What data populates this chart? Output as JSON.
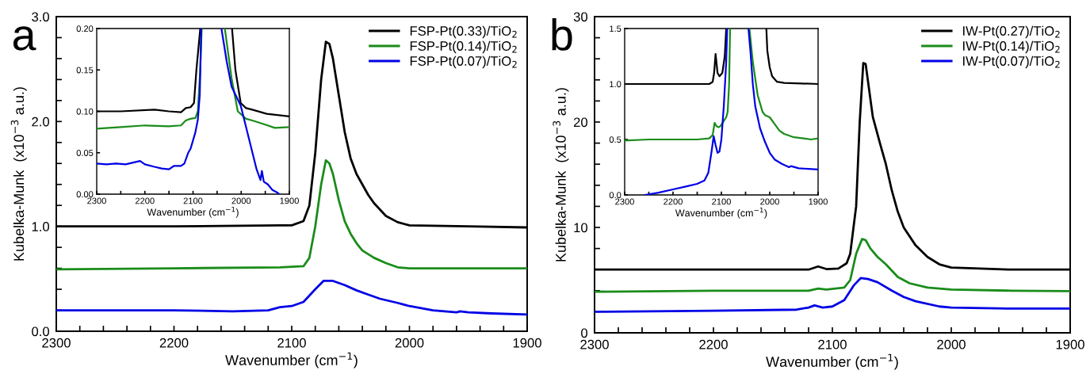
{
  "chart_data": [
    {
      "type": "line",
      "xlabel": "Wavenumber (cm$^{−1}$)",
      "ylabel": "Kubelka-Munk  (x10$^{−3}$ a.u.)",
      "annotations": [
        "a"
      ],
      "legend": "top right",
      "grid": false,
      "xlim": [
        2300,
        1900
      ],
      "ylim": [
        0,
        3.0
      ],
      "xticks": [
        2300,
        {
          "value": 2280,
          "label": null
        },
        {
          "value": 2260,
          "label": null
        },
        {
          "value": 2240,
          "label": null
        },
        {
          "value": 2220,
          "label": null
        },
        2200,
        {
          "value": 2180,
          "label": null
        },
        {
          "value": 2160,
          "label": null
        },
        {
          "value": 2140,
          "label": null
        },
        {
          "value": 2120,
          "label": null
        },
        2100,
        {
          "value": 2080,
          "label": null
        },
        {
          "value": 2060,
          "label": null
        },
        {
          "value": 2040,
          "label": null
        },
        {
          "value": 2020,
          "label": null
        },
        2000,
        {
          "value": 1980,
          "label": null
        },
        {
          "value": 1960,
          "label": null
        },
        {
          "value": 1940,
          "label": null
        },
        {
          "value": 1920,
          "label": null
        },
        1900
      ],
      "yticks": [
        {
          "value": 0,
          "label": "0.0"
        },
        {
          "value": 0.2,
          "label": null
        },
        {
          "value": 0.4,
          "label": null
        },
        {
          "value": 0.6,
          "label": null
        },
        {
          "value": 0.8,
          "label": null
        },
        {
          "value": 1,
          "label": "1.0"
        },
        {
          "value": 1.2,
          "label": null
        },
        {
          "value": 1.4,
          "label": null
        },
        {
          "value": 1.6,
          "label": null
        },
        {
          "value": 1.8,
          "label": null
        },
        {
          "value": 2,
          "label": "2.0"
        },
        {
          "value": 2.2,
          "label": null
        },
        {
          "value": 2.4,
          "label": null
        },
        {
          "value": 2.6,
          "label": null
        },
        {
          "value": 2.8,
          "label": null
        },
        {
          "value": 3,
          "label": "3.0"
        }
      ],
      "series": [
        {
          "name": "FSP-Pt(0.33)/TiO$_{2}$",
          "color": "#000000",
          "x": [
            2300,
            2200,
            2110,
            2100,
            2090,
            2085,
            2080,
            2075,
            2071,
            2068,
            2065,
            2060,
            2055,
            2050,
            2045,
            2040,
            2035,
            2030,
            2020,
            2010,
            2000,
            1950,
            1900
          ],
          "values": [
            1.0,
            1.0,
            1.01,
            1.01,
            1.05,
            1.2,
            1.7,
            2.4,
            2.76,
            2.74,
            2.6,
            2.25,
            1.9,
            1.65,
            1.5,
            1.4,
            1.3,
            1.22,
            1.1,
            1.04,
            1.01,
            1.0,
            0.99
          ]
        },
        {
          "name": "FSP-Pt(0.14)/TiO$_{2}$",
          "color": "#1a8c1a",
          "x": [
            2300,
            2200,
            2110,
            2090,
            2085,
            2080,
            2075,
            2071,
            2068,
            2065,
            2060,
            2055,
            2050,
            2045,
            2040,
            2030,
            2020,
            2010,
            2000,
            1900
          ],
          "values": [
            0.59,
            0.6,
            0.61,
            0.62,
            0.7,
            1.0,
            1.4,
            1.63,
            1.6,
            1.5,
            1.25,
            1.05,
            0.93,
            0.84,
            0.77,
            0.7,
            0.65,
            0.61,
            0.6,
            0.6
          ]
        },
        {
          "name": "FSP-Pt(0.07)/TiO$_{2}$",
          "color": "#0000e6",
          "x": [
            2300,
            2250,
            2200,
            2150,
            2120,
            2110,
            2100,
            2090,
            2080,
            2073,
            2065,
            2055,
            2045,
            2035,
            2025,
            2010,
            2000,
            1980,
            1960,
            1957,
            1950,
            1930,
            1900
          ],
          "values": [
            0.2,
            0.2,
            0.2,
            0.19,
            0.2,
            0.23,
            0.24,
            0.28,
            0.4,
            0.48,
            0.48,
            0.44,
            0.39,
            0.35,
            0.31,
            0.27,
            0.24,
            0.2,
            0.18,
            0.19,
            0.18,
            0.17,
            0.16
          ]
        }
      ]
    },
    {
      "type": "line",
      "xlabel": "Wavenumber (cm$^{−1}$)",
      "grid": false,
      "xlim": [
        2300,
        1900
      ],
      "ylim": [
        0,
        0.2
      ],
      "xticks": [
        2300,
        {
          "value": 2250,
          "label": null
        },
        2200,
        {
          "value": 2150,
          "label": null
        },
        2100,
        {
          "value": 2050,
          "label": null
        },
        2000,
        {
          "value": 1950,
          "label": null
        },
        1900
      ],
      "yticks": [
        {
          "value": 0,
          "label": "0.00"
        },
        0.05,
        {
          "value": 0.1,
          "label": "0.10"
        },
        0.15,
        {
          "value": 0.2,
          "label": "0.20"
        }
      ],
      "series": [
        {
          "color": "#000000",
          "x": [
            2300,
            2250,
            2180,
            2150,
            2125,
            2115,
            2105,
            2098,
            2093,
            2085,
            2050,
            2019,
            2012,
            2001,
            1990,
            1977,
            1947,
            1900
          ],
          "values": [
            0.1,
            0.1,
            0.102,
            0.1,
            0.099,
            0.104,
            0.105,
            0.11,
            0.15,
            0.2,
            null,
            0.2,
            0.15,
            0.11,
            0.104,
            0.102,
            0.097,
            0.094
          ]
        },
        {
          "color": "#1a8c1a",
          "x": [
            2300,
            2250,
            2200,
            2150,
            2125,
            2115,
            2105,
            2095,
            2090,
            2085,
            2082,
            2060,
            2034,
            2020,
            2007,
            1990,
            1977,
            1950,
            1930,
            1900
          ],
          "values": [
            0.079,
            0.081,
            0.083,
            0.082,
            0.083,
            0.089,
            0.091,
            0.092,
            0.1,
            0.15,
            0.2,
            null,
            0.2,
            0.14,
            0.1,
            0.091,
            0.089,
            0.084,
            0.08,
            0.081
          ]
        },
        {
          "color": "#0000e6",
          "x": [
            2300,
            2280,
            2260,
            2240,
            2210,
            2200,
            2180,
            2165,
            2150,
            2140,
            2125,
            2118,
            2110,
            2105,
            2100,
            2095,
            2090,
            2086,
            2083,
            2060,
            2041,
            2030,
            2020,
            2001,
            1968,
            1960,
            1957,
            1953,
            1945,
            1935,
            1925,
            1921
          ],
          "values": [
            0.037,
            0.036,
            0.037,
            0.036,
            0.04,
            0.036,
            0.033,
            0.031,
            0.03,
            0.034,
            0.034,
            0.037,
            0.05,
            0.055,
            0.065,
            0.075,
            0.09,
            0.12,
            0.2,
            null,
            0.2,
            0.16,
            0.13,
            0.107,
            0.03,
            0.017,
            0.028,
            0.015,
            0.012,
            0.005,
            0.002,
            0.0
          ]
        }
      ]
    },
    {
      "type": "line",
      "xlabel": "Wavenumber (cm$^{−1}$)",
      "ylabel": "Kubelka-Munk  (x10$^{−3}$ a.u.)",
      "annotations": [
        "b"
      ],
      "legend": "top right",
      "grid": false,
      "xlim": [
        2300,
        1900
      ],
      "ylim": [
        0,
        30
      ],
      "xticks": [
        2300,
        {
          "value": 2280,
          "label": null
        },
        {
          "value": 2260,
          "label": null
        },
        {
          "value": 2240,
          "label": null
        },
        {
          "value": 2220,
          "label": null
        },
        2200,
        {
          "value": 2180,
          "label": null
        },
        {
          "value": 2160,
          "label": null
        },
        {
          "value": 2140,
          "label": null
        },
        {
          "value": 2120,
          "label": null
        },
        2100,
        {
          "value": 2080,
          "label": null
        },
        {
          "value": 2060,
          "label": null
        },
        {
          "value": 2040,
          "label": null
        },
        {
          "value": 2020,
          "label": null
        },
        2000,
        {
          "value": 1980,
          "label": null
        },
        {
          "value": 1960,
          "label": null
        },
        {
          "value": 1940,
          "label": null
        },
        {
          "value": 1920,
          "label": null
        },
        1900
      ],
      "yticks": [
        0,
        {
          "value": 2,
          "label": null
        },
        {
          "value": 4,
          "label": null
        },
        {
          "value": 6,
          "label": null
        },
        {
          "value": 8,
          "label": null
        },
        10,
        {
          "value": 12,
          "label": null
        },
        {
          "value": 14,
          "label": null
        },
        {
          "value": 16,
          "label": null
        },
        {
          "value": 18,
          "label": null
        },
        20,
        {
          "value": 22,
          "label": null
        },
        {
          "value": 24,
          "label": null
        },
        {
          "value": 26,
          "label": null
        },
        {
          "value": 28,
          "label": null
        },
        30
      ],
      "series": [
        {
          "name": "IW-Pt(0.27)/TiO$_{2}$",
          "color": "#000000",
          "x": [
            2300,
            2120,
            2112,
            2105,
            2095,
            2088,
            2085,
            2080,
            2077,
            2074,
            2072,
            2069,
            2066,
            2060,
            2055,
            2050,
            2045,
            2040,
            2030,
            2020,
            2010,
            2000,
            1950,
            1900
          ],
          "values": [
            6.0,
            6.0,
            6.3,
            6.05,
            6.1,
            6.6,
            7.5,
            12,
            20,
            25.6,
            25.5,
            23,
            20.5,
            18.0,
            16,
            13.5,
            11.5,
            10,
            8.3,
            7.2,
            6.5,
            6.2,
            6.0,
            6.0
          ]
        },
        {
          "name": "IW-Pt(0.14)/TiO$_{2}$",
          "color": "#1a8c1a",
          "x": [
            2300,
            2200,
            2120,
            2112,
            2105,
            2090,
            2085,
            2080,
            2075,
            2072,
            2068,
            2062,
            2055,
            2045,
            2035,
            2020,
            2000,
            1950,
            1900
          ],
          "values": [
            3.9,
            4.0,
            4.0,
            4.2,
            4.1,
            4.3,
            5,
            7.5,
            8.9,
            8.8,
            8,
            7.2,
            6.5,
            5.3,
            4.7,
            4.3,
            4.1,
            4.0,
            3.95
          ]
        },
        {
          "name": "IW-Pt(0.07)/TiO$_{2}$",
          "color": "#0000e6",
          "x": [
            2300,
            2200,
            2130,
            2120,
            2115,
            2108,
            2100,
            2090,
            2082,
            2076,
            2070,
            2062,
            2050,
            2040,
            2030,
            2010,
            2000,
            1950,
            1900
          ],
          "values": [
            2.0,
            2.1,
            2.2,
            2.4,
            2.6,
            2.4,
            2.5,
            3.1,
            4.5,
            5.2,
            5.1,
            4.8,
            4.0,
            3.4,
            3.0,
            2.5,
            2.4,
            2.3,
            2.3
          ]
        }
      ]
    },
    {
      "type": "line",
      "xlabel": "Wavenumber (cm$^{−1}$)",
      "grid": false,
      "xlim": [
        2300,
        1900
      ],
      "ylim": [
        0,
        1.5
      ],
      "xticks": [
        2300,
        {
          "value": 2250,
          "label": null
        },
        2200,
        {
          "value": 2150,
          "label": null
        },
        2100,
        {
          "value": 2050,
          "label": null
        },
        2000,
        {
          "value": 1950,
          "label": null
        },
        1900
      ],
      "yticks": [
        {
          "value": 0,
          "label": "0.0"
        },
        0.5,
        {
          "value": 1,
          "label": "1.0"
        },
        1.5
      ],
      "series": [
        {
          "color": "#000000",
          "x": [
            2300,
            2200,
            2125,
            2118,
            2115,
            2112,
            2108,
            2104,
            2098,
            2093,
            2090,
            2050,
            2007,
            2005,
            2000,
            1995,
            1985,
            1970,
            1900
          ],
          "values": [
            1.0,
            1.0,
            1.0,
            1.02,
            1.1,
            1.27,
            1.1,
            1.07,
            1.1,
            1.25,
            1.5,
            null,
            1.5,
            1.3,
            1.15,
            1.07,
            1.02,
            1.01,
            1.0
          ]
        },
        {
          "color": "#1a8c1a",
          "x": [
            2300,
            2250,
            2200,
            2150,
            2125,
            2118,
            2114,
            2110,
            2106,
            2102,
            2096,
            2090,
            2087,
            2084,
            2082,
            2060,
            2042,
            2035,
            2025,
            2015,
            2010,
            2000,
            1990,
            1980,
            1970,
            1950,
            1930,
            1915,
            1900
          ],
          "values": [
            0.49,
            0.5,
            0.5,
            0.5,
            0.51,
            0.54,
            0.65,
            0.62,
            0.61,
            0.62,
            0.66,
            0.7,
            0.75,
            1.0,
            1.5,
            null,
            1.5,
            1.2,
            0.9,
            0.75,
            0.72,
            0.7,
            0.64,
            0.58,
            0.55,
            0.52,
            0.51,
            0.5,
            0.51
          ]
        },
        {
          "color": "#0000e6",
          "x": [
            2258,
            2230,
            2200,
            2170,
            2150,
            2135,
            2127,
            2120,
            2116,
            2112,
            2108,
            2104,
            2100,
            2095,
            2090,
            2088,
            2060,
            2044,
            2040,
            2035,
            2030,
            2020,
            2010,
            2000,
            1990,
            1975,
            1960,
            1956,
            1940,
            1900
          ],
          "values": [
            0.0,
            0.02,
            0.05,
            0.08,
            0.1,
            0.13,
            0.2,
            0.4,
            0.53,
            0.45,
            0.38,
            0.39,
            0.5,
            0.8,
            1.2,
            1.5,
            null,
            1.5,
            1.3,
            1.0,
            0.8,
            0.6,
            0.48,
            0.38,
            0.32,
            0.28,
            0.25,
            0.26,
            0.24,
            0.23
          ]
        }
      ]
    }
  ]
}
